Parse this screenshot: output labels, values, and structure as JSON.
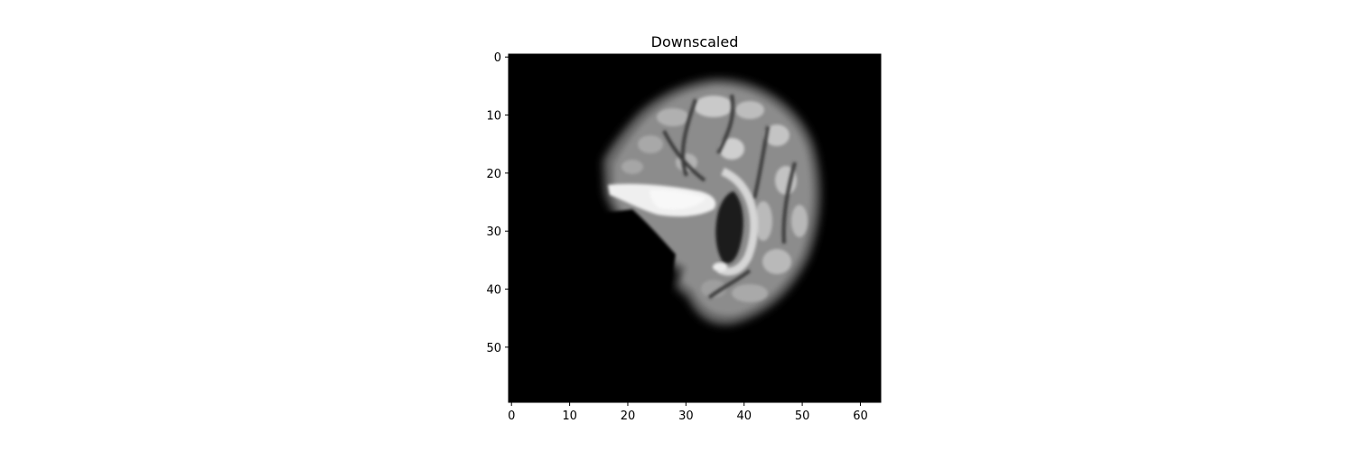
{
  "chart_data": {
    "type": "heatmap",
    "title": "Downscaled",
    "xlabel": "",
    "ylabel": "",
    "colormap": "gray",
    "x_range": [
      -0.5,
      63.5
    ],
    "y_range": [
      -0.5,
      59.5
    ],
    "y_inverted": true,
    "grid": false,
    "x_ticks": [
      0,
      10,
      20,
      30,
      40,
      50,
      60
    ],
    "y_ticks": [
      0,
      10,
      20,
      30,
      40,
      50
    ],
    "x_tick_labels": [
      "0",
      "10",
      "20",
      "30",
      "40",
      "50",
      "60"
    ],
    "y_tick_labels": [
      "0",
      "10",
      "20",
      "30",
      "40",
      "50"
    ],
    "image_size": {
      "rows": 60,
      "cols": 64
    },
    "content": "grayscale sagittal brain MRI slice on black background",
    "colors": {
      "background": "#000000",
      "axes": "#000000"
    }
  }
}
